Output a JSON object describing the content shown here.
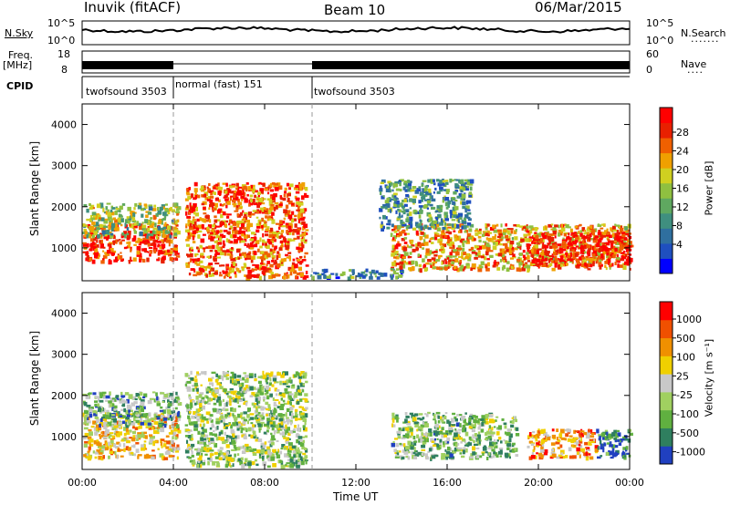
{
  "header": {
    "station": "Inuvik (fitACF)",
    "beam": "Beam 10",
    "date": "06/Mar/2015"
  },
  "top_panels": {
    "nsky_label": "N.Sky",
    "nsky_ticks": [
      "10^5",
      "10^0"
    ],
    "nsearch_label": "N.Search",
    "nsearch_ticks": [
      "10^5",
      "10^0"
    ],
    "freq_label": "Freq.",
    "freq_unit": "[MHz]",
    "freq_ticks": [
      "18",
      "8"
    ],
    "nave_label": "Nave",
    "nave_ticks": [
      "60",
      "0"
    ],
    "cpid_label": "CPID",
    "cpid_segments": [
      {
        "label": "twofsound 3503",
        "start": 0,
        "end": 4
      },
      {
        "label": "normal (fast) 151",
        "start": 4,
        "end": 10
      },
      {
        "label": "twofsound 3503",
        "start": 10,
        "end": 24
      }
    ]
  },
  "x_axis": {
    "label": "Time UT",
    "ticks": [
      "00:00",
      "04:00",
      "08:00",
      "12:00",
      "16:00",
      "20:00",
      "00:00"
    ],
    "range_hours": [
      0,
      24
    ]
  },
  "chart_data": [
    {
      "type": "heatmap",
      "name": "power",
      "ylabel": "Slant Range [km]",
      "yticks": [
        "1000",
        "2000",
        "3000",
        "4000"
      ],
      "ylim": [
        200,
        4500
      ],
      "colorbar_label": "Power [dB]",
      "colorbar_ticks": [
        "28",
        "24",
        "20",
        "16",
        "12",
        "8",
        "4"
      ],
      "colors": [
        "#0000ff",
        "#1f4fbf",
        "#2f6f9f",
        "#3f8f7f",
        "#5fa860",
        "#8fc040",
        "#d0d020",
        "#f0a000",
        "#f06000",
        "#e82000",
        "#ff0000"
      ],
      "regions": [
        {
          "t": [
            0.0,
            4.2
          ],
          "r": [
            700,
            1600
          ],
          "level": 0.9
        },
        {
          "t": [
            0.0,
            4.2
          ],
          "r": [
            1300,
            2100
          ],
          "level": 0.5
        },
        {
          "t": [
            4.5,
            9.8
          ],
          "r": [
            300,
            2600
          ],
          "level": 0.8
        },
        {
          "t": [
            10.0,
            14.0
          ],
          "r": [
            300,
            500
          ],
          "level": 0.3
        },
        {
          "t": [
            13.5,
            24.0
          ],
          "r": [
            500,
            1600
          ],
          "level": 0.7
        },
        {
          "t": [
            13.0,
            17.0
          ],
          "r": [
            1500,
            2700
          ],
          "level": 0.35
        },
        {
          "t": [
            19.5,
            24.0
          ],
          "r": [
            600,
            1400
          ],
          "level": 0.95
        }
      ]
    },
    {
      "type": "heatmap",
      "name": "velocity",
      "ylabel": "Slant Range [km]",
      "yticks": [
        "1000",
        "2000",
        "3000",
        "4000"
      ],
      "ylim": [
        200,
        4500
      ],
      "colorbar_label": "Velocity [m s⁻¹]",
      "colorbar_ticks": [
        "1000",
        "500",
        "100",
        "25",
        "-25",
        "-100",
        "-500",
        "-1000"
      ],
      "colors": [
        "#2040c0",
        "#2f7f5f",
        "#60b040",
        "#a0d060",
        "#c8c8c8",
        "#f0d000",
        "#f09000",
        "#f05000",
        "#ff0000"
      ],
      "regions": [
        {
          "t": [
            0.0,
            4.2
          ],
          "r": [
            500,
            1600
          ],
          "level": 0.6
        },
        {
          "t": [
            0.0,
            4.2
          ],
          "r": [
            1300,
            2100
          ],
          "level": 0.3
        },
        {
          "t": [
            4.5,
            9.8
          ],
          "r": [
            300,
            2600
          ],
          "level": 0.4
        },
        {
          "t": [
            13.5,
            19.0
          ],
          "r": [
            500,
            1600
          ],
          "level": 0.35
        },
        {
          "t": [
            19.5,
            22.5
          ],
          "r": [
            500,
            1200
          ],
          "level": 0.7
        },
        {
          "t": [
            22.5,
            24.0
          ],
          "r": [
            500,
            1200
          ],
          "level": 0.15
        }
      ]
    }
  ]
}
